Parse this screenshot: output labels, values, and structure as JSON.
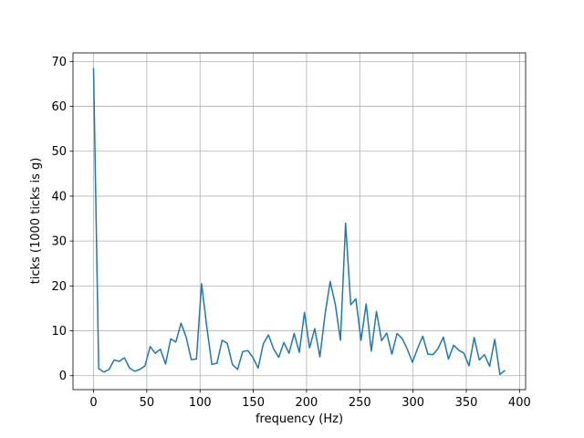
{
  "chart_data": {
    "type": "line",
    "x_label": "frequency (Hz)",
    "y_label": "ticks (1000 ticks is g)",
    "x": [
      0,
      4.83,
      9.66,
      14.49,
      19.32,
      24.15,
      28.98,
      33.81,
      38.64,
      43.47,
      48.3,
      53.13,
      57.96,
      62.79,
      67.62,
      72.45,
      77.28,
      82.11,
      86.94,
      91.77,
      96.6,
      101.43,
      106.26,
      111.09,
      115.92,
      120.75,
      125.58,
      130.41,
      135.24,
      140.07,
      144.9,
      149.73,
      154.56,
      159.39,
      164.22,
      169.05,
      173.88,
      178.71,
      183.54,
      188.37,
      193.2,
      198.03,
      202.86,
      207.69,
      212.52,
      217.35,
      222.18,
      227.01,
      231.84,
      236.67,
      241.5,
      246.33,
      251.16,
      255.99,
      260.82,
      265.65,
      270.48,
      275.31,
      280.14,
      284.97,
      289.8,
      294.63,
      299.46,
      304.29,
      309.12,
      313.95,
      318.78,
      323.61,
      328.44,
      333.27,
      338.1,
      342.93,
      347.76,
      352.59,
      357.42,
      362.25,
      367.08,
      371.91,
      376.74,
      381.57,
      386.4
    ],
    "values": [
      68.5,
      1.6,
      0.8,
      1.4,
      3.5,
      3.2,
      4.0,
      1.7,
      1.0,
      1.4,
      2.2,
      6.5,
      5.0,
      5.9,
      2.6,
      8.2,
      7.5,
      11.7,
      8.6,
      3.6,
      3.7,
      20.5,
      11,
      2.5,
      2.8,
      7.9,
      7.2,
      2.5,
      1.4,
      5.4,
      5.6,
      4.0,
      1.7,
      7.1,
      9.1,
      6.0,
      4.1,
      7.4,
      5.0,
      9.4,
      5.2,
      14.1,
      6.2,
      10.5,
      4.2,
      13.6,
      21.0,
      15.9,
      7.9,
      34.0,
      15.8,
      17.1,
      7.9,
      16.0,
      5.5,
      14.3,
      7.8,
      9.5,
      4.8,
      9.4,
      8.3,
      5.9,
      3.0,
      6.1,
      8.8,
      4.8,
      4.7,
      6.1,
      8.6,
      3.7,
      6.8,
      5.7,
      5.0,
      2.2,
      8.5,
      3.5,
      4.7,
      2.1,
      8.1,
      0.3,
      1.2
    ],
    "color": "#1f77b4",
    "xlim": [
      -19.3,
      405.7
    ],
    "ylim": [
      -3.1,
      71.9
    ],
    "xticks": [
      0,
      50,
      100,
      150,
      200,
      250,
      300,
      350,
      400
    ],
    "yticks": [
      0,
      10,
      20,
      30,
      40,
      50,
      60,
      70
    ],
    "grid": true
  }
}
